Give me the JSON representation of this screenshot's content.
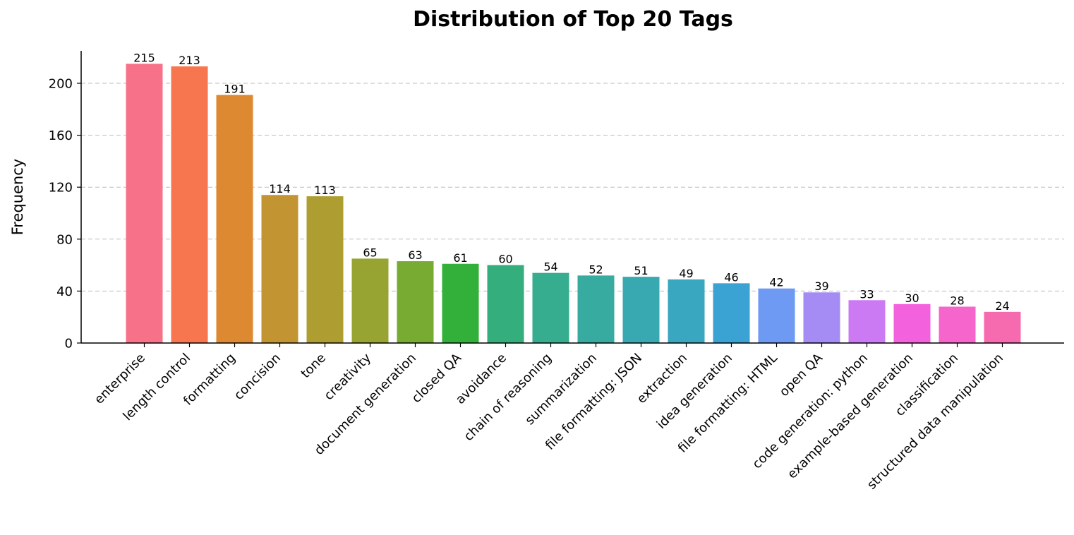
{
  "chart_data": {
    "type": "bar",
    "title": "Distribution of Top 20 Tags",
    "xlabel": "",
    "ylabel": "Frequency",
    "ylim": [
      0,
      225
    ],
    "yticks": [
      0,
      40,
      80,
      120,
      160,
      200
    ],
    "grid": "y-dashed",
    "categories": [
      "enterprise",
      "length control",
      "formatting",
      "concision",
      "tone",
      "creativity",
      "document generation",
      "closed QA",
      "avoidance",
      "chain of reasoning",
      "summarization",
      "file formatting: JSON",
      "extraction",
      "idea generation",
      "file formatting: HTML",
      "open QA",
      "code generation: python",
      "example-based generation",
      "classification",
      "structured data manipulation"
    ],
    "values": [
      215,
      213,
      191,
      114,
      113,
      65,
      63,
      61,
      60,
      54,
      52,
      51,
      49,
      46,
      42,
      39,
      33,
      30,
      28,
      24
    ],
    "colors": [
      "#f77189",
      "#f7754f",
      "#dc8932",
      "#c39532",
      "#ae9d31",
      "#97a431",
      "#77ab31",
      "#33b039",
      "#35ae7d",
      "#36ad8f",
      "#37aba0",
      "#38a9b0",
      "#39a7bf",
      "#3ba3d4",
      "#6e9af3",
      "#a48cf4",
      "#cc7af4",
      "#f461dd",
      "#f565cc",
      "#f66bb0"
    ]
  }
}
